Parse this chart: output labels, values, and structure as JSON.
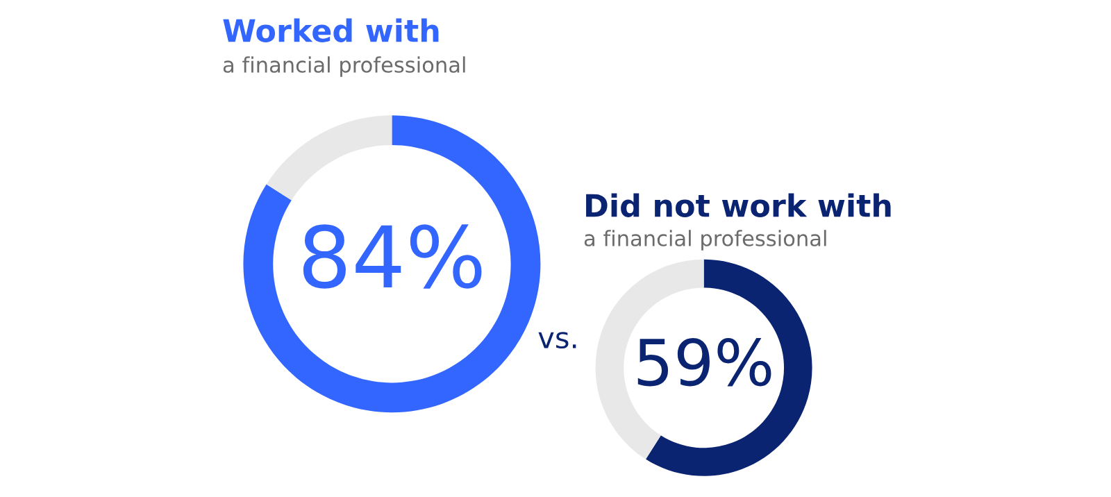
{
  "chart_data": [
    {
      "type": "donut",
      "title": "Worked with",
      "subtitle": "a financial professional",
      "categories": [
        null,
        null
      ],
      "values": [
        84,
        16
      ],
      "colors": [
        "#3366ff",
        "#e8e8e8"
      ],
      "value_labels": [
        "84%",
        null
      ]
    },
    {
      "type": "donut",
      "title": "Did not work with",
      "subtitle": "a financial professional",
      "categories": [
        null,
        null
      ],
      "values": [
        59,
        41
      ],
      "colors": [
        "#0a2472",
        "#e8e8e8"
      ],
      "value_labels": [
        "59%",
        null
      ],
      "annotations": [
        "vs."
      ]
    }
  ]
}
